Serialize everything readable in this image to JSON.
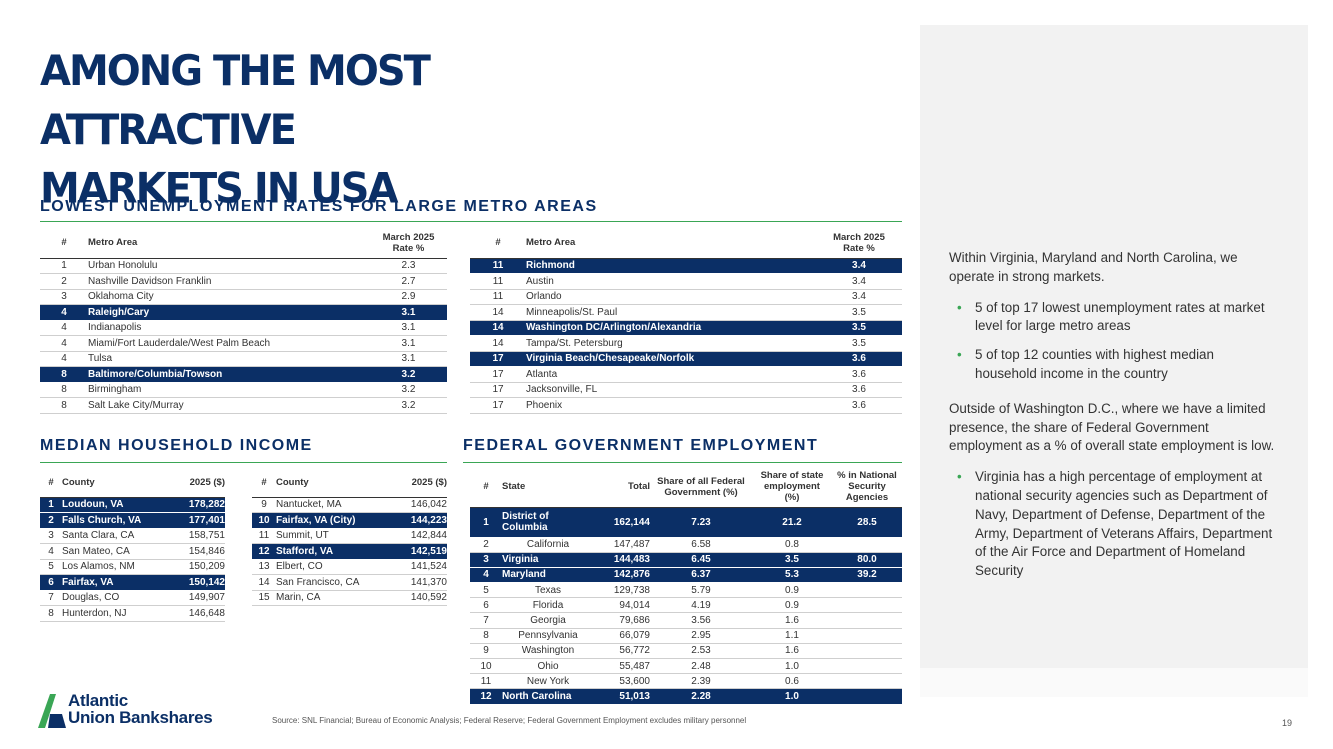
{
  "title_lines": [
    "AMONG THE MOST ATTRACTIVE",
    "MARKETS IN USA"
  ],
  "unemployment": {
    "section_title": "LOWEST UNEMPLOYMENT RATES FOR LARGE METRO AREAS",
    "header": {
      "num": "#",
      "metro": "Metro Area",
      "rate_line1": "March 2025",
      "rate_line2": "Rate %"
    },
    "left_rows": [
      {
        "num": "1",
        "name": "Urban Honolulu",
        "rate": "2.3",
        "hl": false
      },
      {
        "num": "2",
        "name": "Nashville Davidson Franklin",
        "rate": "2.7",
        "hl": false
      },
      {
        "num": "3",
        "name": "Oklahoma City",
        "rate": "2.9",
        "hl": false
      },
      {
        "num": "4",
        "name": "Raleigh/Cary",
        "rate": "3.1",
        "hl": true
      },
      {
        "num": "4",
        "name": "Indianapolis",
        "rate": "3.1",
        "hl": false
      },
      {
        "num": "4",
        "name": "Miami/Fort Lauderdale/West Palm Beach",
        "rate": "3.1",
        "hl": false
      },
      {
        "num": "4",
        "name": "Tulsa",
        "rate": "3.1",
        "hl": false
      },
      {
        "num": "8",
        "name": "Baltimore/Columbia/Towson",
        "rate": "3.2",
        "hl": true
      },
      {
        "num": "8",
        "name": "Birmingham",
        "rate": "3.2",
        "hl": false
      },
      {
        "num": "8",
        "name": "Salt Lake City/Murray",
        "rate": "3.2",
        "hl": false
      }
    ],
    "right_rows": [
      {
        "num": "11",
        "name": "Richmond",
        "rate": "3.4",
        "hl": true
      },
      {
        "num": "11",
        "name": "Austin",
        "rate": "3.4",
        "hl": false
      },
      {
        "num": "11",
        "name": "Orlando",
        "rate": "3.4",
        "hl": false
      },
      {
        "num": "14",
        "name": "Minneapolis/St. Paul",
        "rate": "3.5",
        "hl": false
      },
      {
        "num": "14",
        "name": "Washington DC/Arlington/Alexandria",
        "rate": "3.5",
        "hl": true
      },
      {
        "num": "14",
        "name": "Tampa/St. Petersburg",
        "rate": "3.5",
        "hl": false
      },
      {
        "num": "17",
        "name": "Virginia Beach/Chesapeake/Norfolk",
        "rate": "3.6",
        "hl": true
      },
      {
        "num": "17",
        "name": "Atlanta",
        "rate": "3.6",
        "hl": false
      },
      {
        "num": "17",
        "name": "Jacksonville, FL",
        "rate": "3.6",
        "hl": false
      },
      {
        "num": "17",
        "name": "Phoenix",
        "rate": "3.6",
        "hl": false
      }
    ]
  },
  "income": {
    "section_title": "MEDIAN HOUSEHOLD INCOME",
    "header": {
      "num": "#",
      "county": "County",
      "value": "2025 ($)"
    },
    "left_rows": [
      {
        "num": "1",
        "name": "Loudoun, VA",
        "value": "178,282",
        "hl": true
      },
      {
        "num": "2",
        "name": "Falls Church, VA",
        "value": "177,401",
        "hl": true
      },
      {
        "num": "3",
        "name": "Santa Clara, CA",
        "value": "158,751",
        "hl": false
      },
      {
        "num": "4",
        "name": "San Mateo, CA",
        "value": "154,846",
        "hl": false
      },
      {
        "num": "5",
        "name": "Los Alamos, NM",
        "value": "150,209",
        "hl": false
      },
      {
        "num": "6",
        "name": "Fairfax, VA",
        "value": "150,142",
        "hl": true
      },
      {
        "num": "7",
        "name": "Douglas, CO",
        "value": "149,907",
        "hl": false
      },
      {
        "num": "8",
        "name": "Hunterdon, NJ",
        "value": "146,648",
        "hl": false
      }
    ],
    "right_rows": [
      {
        "num": "9",
        "name": "Nantucket, MA",
        "value": "146,042",
        "hl": false
      },
      {
        "num": "10",
        "name": "Fairfax, VA (City)",
        "value": "144,223",
        "hl": true
      },
      {
        "num": "11",
        "name": "Summit, UT",
        "value": "142,844",
        "hl": false
      },
      {
        "num": "12",
        "name": "Stafford, VA",
        "value": "142,519",
        "hl": true
      },
      {
        "num": "13",
        "name": "Elbert, CO",
        "value": "141,524",
        "hl": false
      },
      {
        "num": "14",
        "name": "San Francisco, CA",
        "value": "141,370",
        "hl": false
      },
      {
        "num": "15",
        "name": "Marin, CA",
        "value": "140,592",
        "hl": false
      }
    ]
  },
  "federal": {
    "section_title": "FEDERAL GOVERNMENT EMPLOYMENT",
    "header": {
      "num": "#",
      "state": "State",
      "total": "Total",
      "share_fed": [
        "Share of all Federal",
        "Government (%)"
      ],
      "share_state": [
        "Share of state",
        "employment",
        "(%)"
      ],
      "pct_natsec": [
        "% in National",
        "Security",
        "Agencies"
      ]
    },
    "rows": [
      {
        "num": "1",
        "state_lines": [
          "District of",
          "Columbia"
        ],
        "total": "162,144",
        "share_fed": "7.23",
        "share_state": "21.2",
        "natsec": "28.5",
        "hl": true
      },
      {
        "num": "2",
        "state_lines": [
          "California"
        ],
        "total": "147,487",
        "share_fed": "6.58",
        "share_state": "0.8",
        "natsec": "",
        "hl": false
      },
      {
        "num": "3",
        "state_lines": [
          "Virginia"
        ],
        "total": "144,483",
        "share_fed": "6.45",
        "share_state": "3.5",
        "natsec": "80.0",
        "hl": true
      },
      {
        "num": "4",
        "state_lines": [
          "Maryland"
        ],
        "total": "142,876",
        "share_fed": "6.37",
        "share_state": "5.3",
        "natsec": "39.2",
        "hl": true
      },
      {
        "num": "5",
        "state_lines": [
          "Texas"
        ],
        "total": "129,738",
        "share_fed": "5.79",
        "share_state": "0.9",
        "natsec": "",
        "hl": false
      },
      {
        "num": "6",
        "state_lines": [
          "Florida"
        ],
        "total": "94,014",
        "share_fed": "4.19",
        "share_state": "0.9",
        "natsec": "",
        "hl": false
      },
      {
        "num": "7",
        "state_lines": [
          "Georgia"
        ],
        "total": "79,686",
        "share_fed": "3.56",
        "share_state": "1.6",
        "natsec": "",
        "hl": false
      },
      {
        "num": "8",
        "state_lines": [
          "Pennsylvania"
        ],
        "total": "66,079",
        "share_fed": "2.95",
        "share_state": "1.1",
        "natsec": "",
        "hl": false
      },
      {
        "num": "9",
        "state_lines": [
          "Washington"
        ],
        "total": "56,772",
        "share_fed": "2.53",
        "share_state": "1.6",
        "natsec": "",
        "hl": false
      },
      {
        "num": "10",
        "state_lines": [
          "Ohio"
        ],
        "total": "55,487",
        "share_fed": "2.48",
        "share_state": "1.0",
        "natsec": "",
        "hl": false
      },
      {
        "num": "11",
        "state_lines": [
          "New York"
        ],
        "total": "53,600",
        "share_fed": "2.39",
        "share_state": "0.6",
        "natsec": "",
        "hl": false
      },
      {
        "num": "12",
        "state_lines": [
          "North Carolina"
        ],
        "total": "51,013",
        "share_fed": "2.28",
        "share_state": "1.0",
        "natsec": "",
        "hl": true
      }
    ]
  },
  "sidebar": {
    "intro": "Within Virginia, Maryland and North Carolina, we operate in strong markets.",
    "bullets1": [
      "5 of top 17 lowest unemployment rates at market level for large metro areas",
      "5 of top 12 counties with highest median household income in the country"
    ],
    "para2": "Outside of Washington D.C., where we have a limited presence, the share of Federal Government employment as a % of overall state employment is low.",
    "bullets2": [
      "Virginia has a high percentage of employment at national security agencies such as Department of Navy, Department of Defense, Department of the Army, Department of Veterans Affairs, Department of the Air Force and Department of Homeland Security"
    ],
    "bullet_glyph": "•"
  },
  "footer": {
    "source": "Source: SNL Financial; Bureau of Economic Analysis; Federal Reserve; Federal Government Employment excludes military personnel",
    "page_number": "19",
    "logo_line1": "Atlantic",
    "logo_line2": "Union Bankshares"
  },
  "colors": {
    "navy": "#0b2f66",
    "green": "#3aa655",
    "panel": "#f2f2f2"
  }
}
